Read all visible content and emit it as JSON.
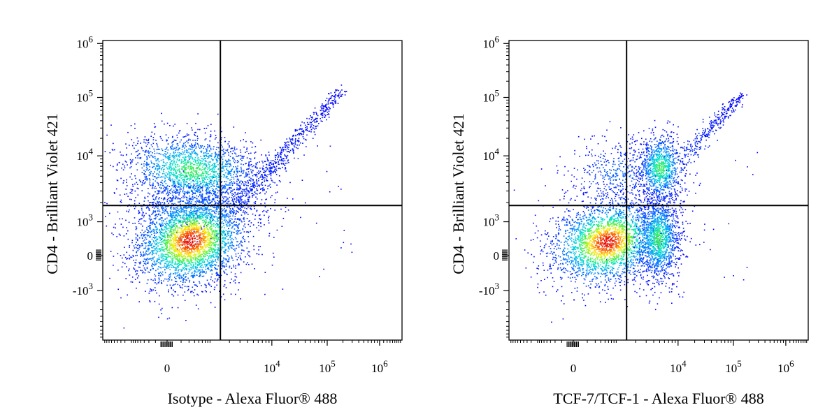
{
  "chart_data": [
    {
      "type": "scatter",
      "style": "density-dot-plot",
      "xlabel": "Isotype - Alexa Fluor® 488",
      "ylabel": "CD4 - Brilliant Violet 421",
      "x_scale": "biexponential",
      "y_scale": "biexponential",
      "x_ticks": [
        {
          "value": 0,
          "base": "0",
          "exp": ""
        },
        {
          "value": 10000,
          "base": "10",
          "exp": "4"
        },
        {
          "value": 100000,
          "base": "10",
          "exp": "5"
        },
        {
          "value": 1000000,
          "base": "10",
          "exp": "6"
        }
      ],
      "y_ticks": [
        {
          "value": 1000000,
          "base": "10",
          "exp": "6"
        },
        {
          "value": 100000,
          "base": "10",
          "exp": "5"
        },
        {
          "value": 10000,
          "base": "10",
          "exp": "4"
        },
        {
          "value": 1000,
          "base": "10",
          "exp": "3"
        },
        {
          "value": 0,
          "base": "0",
          "exp": ""
        },
        {
          "value": -1000,
          "base": "-10",
          "exp": "3"
        }
      ],
      "gate": {
        "x": 1400,
        "y": 1800
      },
      "populations": [
        {
          "label": "CD4+ / isotype-",
          "x_center": 200,
          "y_center": 5000,
          "density": "medium"
        },
        {
          "label": "CD4- / isotype-",
          "x_center": 350,
          "y_center": 300,
          "density": "high"
        },
        {
          "label": "diagonal autofluorescent tail",
          "x_range": [
            1500,
            200000
          ],
          "y_range": [
            2000,
            110000
          ],
          "density": "low"
        }
      ],
      "colors": {
        "low": "#0000ff",
        "mid": "#00d8ff",
        "high_mid": "#ffff00",
        "high": "#ff0000"
      }
    },
    {
      "type": "scatter",
      "style": "density-dot-plot",
      "xlabel": "TCF-7/TCF-1 - Alexa Fluor® 488",
      "ylabel": "CD4 - Brilliant Violet 421",
      "x_scale": "biexponential",
      "y_scale": "biexponential",
      "x_ticks": [
        {
          "value": 0,
          "base": "0",
          "exp": ""
        },
        {
          "value": 10000,
          "base": "10",
          "exp": "4"
        },
        {
          "value": 100000,
          "base": "10",
          "exp": "5"
        },
        {
          "value": 1000000,
          "base": "10",
          "exp": "6"
        }
      ],
      "y_ticks": [
        {
          "value": 1000000,
          "base": "10",
          "exp": "6"
        },
        {
          "value": 100000,
          "base": "10",
          "exp": "5"
        },
        {
          "value": 10000,
          "base": "10",
          "exp": "4"
        },
        {
          "value": 1000,
          "base": "10",
          "exp": "3"
        },
        {
          "value": 0,
          "base": "0",
          "exp": ""
        },
        {
          "value": -1000,
          "base": "-10",
          "exp": "3"
        }
      ],
      "gate": {
        "x": 1400,
        "y": 1800
      },
      "populations": [
        {
          "label": "CD4- / TCF-7-",
          "x_center": 500,
          "y_center": 300,
          "density": "high"
        },
        {
          "label": "CD4- / TCF-7+",
          "x_center": 4000,
          "y_center": 300,
          "density": "medium"
        },
        {
          "label": "CD4+ / TCF-7+",
          "x_center": 4000,
          "y_center": 5000,
          "density": "medium"
        },
        {
          "label": "diagonal autofluorescent tail",
          "x_range": [
            6000,
            100000
          ],
          "y_range": [
            9000,
            100000
          ],
          "density": "low"
        }
      ],
      "colors": {
        "low": "#0000ff",
        "mid": "#00d8ff",
        "high_mid": "#ffff00",
        "high": "#ff0000"
      }
    }
  ]
}
